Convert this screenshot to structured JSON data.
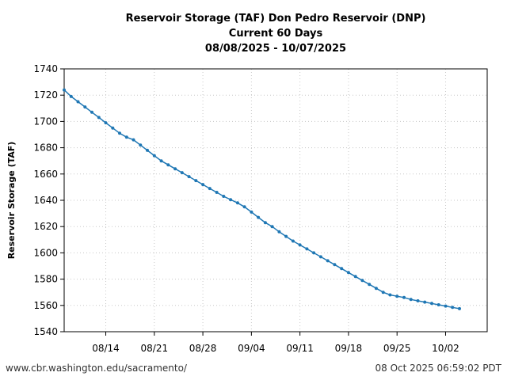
{
  "chart_data": {
    "type": "line",
    "title_lines": [
      "Reservoir Storage (TAF) Don Pedro Reservoir (DNP)",
      "Current 60 Days",
      "08/08/2025 - 10/07/2025"
    ],
    "xlabel": "",
    "ylabel": "Reservoir Storage (TAF)",
    "ylim": [
      1540,
      1740
    ],
    "yticks": [
      "1540",
      "1560",
      "1580",
      "1600",
      "1620",
      "1640",
      "1660",
      "1680",
      "1700",
      "1720",
      "1740"
    ],
    "xticks": [
      {
        "label": "08/14",
        "day": 6
      },
      {
        "label": "08/21",
        "day": 13
      },
      {
        "label": "08/28",
        "day": 20
      },
      {
        "label": "09/04",
        "day": 27
      },
      {
        "label": "09/11",
        "day": 34
      },
      {
        "label": "09/18",
        "day": 41
      },
      {
        "label": "09/25",
        "day": 48
      },
      {
        "label": "10/02",
        "day": 55
      }
    ],
    "xlim_days": [
      0,
      61
    ],
    "grid": true,
    "line_color": "#1f77b4",
    "series": [
      {
        "name": "Reservoir Storage (TAF)",
        "start_date": "08/08/2025",
        "values": [
          1724,
          1719,
          1715,
          1711,
          1707,
          1703,
          1699,
          1695,
          1691,
          1688,
          1686,
          1682,
          1678,
          1674,
          1670,
          1667,
          1664,
          1661,
          1658,
          1655,
          1652,
          1649,
          1646,
          1643,
          1640.5,
          1638,
          1635,
          1631,
          1627,
          1623,
          1620,
          1616,
          1612.5,
          1609,
          1606,
          1603,
          1600,
          1597,
          1594,
          1591,
          1588,
          1585,
          1582,
          1579,
          1576,
          1573,
          1570,
          1568,
          1567,
          1566,
          1564.5,
          1563.5,
          1562.5,
          1561.5,
          1560.5,
          1559.5,
          1558.5,
          1557.5
        ]
      }
    ]
  },
  "footer": {
    "source": "www.cbr.washington.edu/sacramento/",
    "timestamp": "08 Oct 2025 06:59:02 PDT"
  }
}
